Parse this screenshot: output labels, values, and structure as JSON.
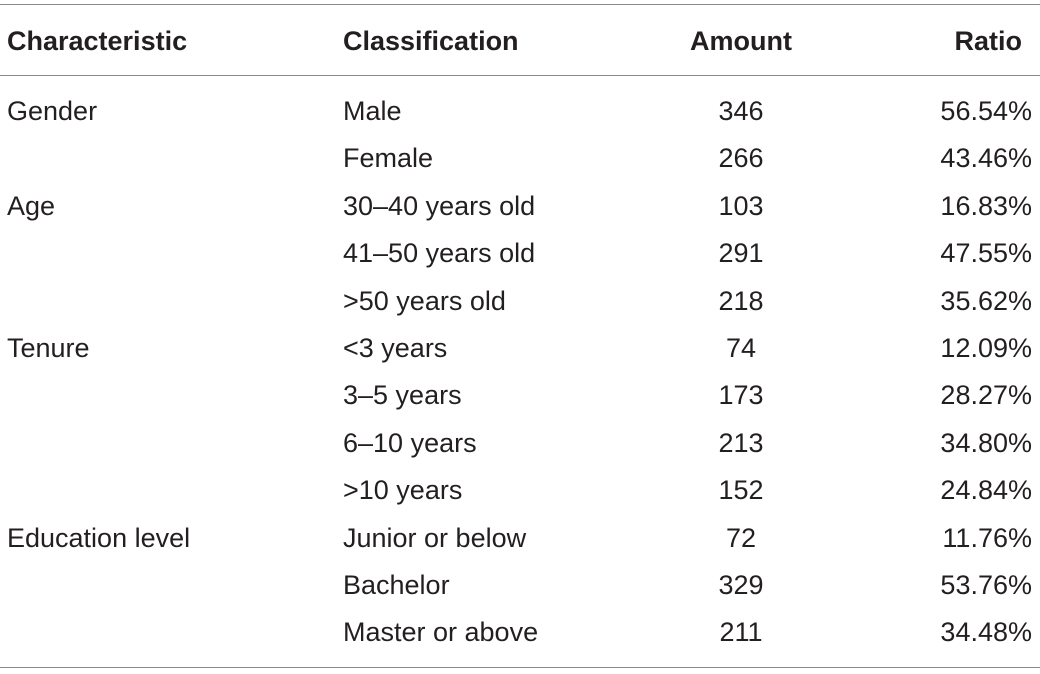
{
  "table": {
    "headers": {
      "characteristic": "Characteristic",
      "classification": "Classification",
      "amount": "Amount",
      "ratio": "Ratio"
    },
    "rows": [
      {
        "characteristic": "Gender",
        "classification": "Male",
        "amount": "346",
        "ratio": "56.54%"
      },
      {
        "characteristic": "",
        "classification": "Female",
        "amount": "266",
        "ratio": "43.46%"
      },
      {
        "characteristic": "Age",
        "classification": "30–40 years old",
        "amount": "103",
        "ratio": "16.83%"
      },
      {
        "characteristic": "",
        "classification": "41–50 years old",
        "amount": "291",
        "ratio": "47.55%"
      },
      {
        "characteristic": "",
        "classification": ">50 years old",
        "amount": "218",
        "ratio": "35.62%"
      },
      {
        "characteristic": "Tenure",
        "classification": "<3 years",
        "amount": "74",
        "ratio": "12.09%"
      },
      {
        "characteristic": "",
        "classification": "3–5 years",
        "amount": "173",
        "ratio": "28.27%"
      },
      {
        "characteristic": "",
        "classification": "6–10 years",
        "amount": "213",
        "ratio": "34.80%"
      },
      {
        "characteristic": "",
        "classification": ">10 years",
        "amount": "152",
        "ratio": "24.84%"
      },
      {
        "characteristic": "Education level",
        "classification": "Junior or below",
        "amount": "72",
        "ratio": "11.76%"
      },
      {
        "characteristic": "",
        "classification": "Bachelor",
        "amount": "329",
        "ratio": "53.76%"
      },
      {
        "characteristic": "",
        "classification": "Master or above",
        "amount": "211",
        "ratio": "34.48%"
      }
    ]
  }
}
